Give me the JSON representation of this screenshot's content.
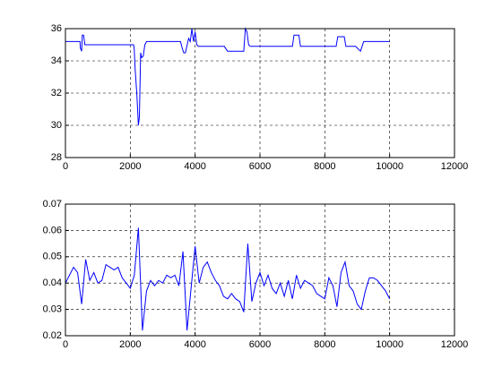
{
  "chart_data": [
    {
      "type": "line",
      "x": [
        0,
        450,
        460,
        500,
        520,
        560,
        600,
        620,
        2100,
        2120,
        2150,
        2200,
        2250,
        2280,
        2320,
        2350,
        2400,
        2450,
        2500,
        3550,
        3600,
        3650,
        3700,
        3800,
        3850,
        3900,
        3950,
        4000,
        4050,
        4100,
        4900,
        5000,
        5500,
        5550,
        5600,
        5650,
        5700,
        7000,
        7050,
        7200,
        7250,
        8350,
        8400,
        8600,
        8650,
        8950,
        9100,
        9200,
        10000
      ],
      "series": [
        {
          "color": "#0000ff",
          "values": [
            35.2,
            35.2,
            34.8,
            34.6,
            35.6,
            35.6,
            35.0,
            35.0,
            35.0,
            34.8,
            33.5,
            32.0,
            30.0,
            30.5,
            34.5,
            34.2,
            34.3,
            35.0,
            35.2,
            35.2,
            34.8,
            34.5,
            34.5,
            35.4,
            35.2,
            36.0,
            35.2,
            35.8,
            35.0,
            34.9,
            34.9,
            34.6,
            34.6,
            36.0,
            35.8,
            35.0,
            34.9,
            34.9,
            35.6,
            35.6,
            34.9,
            34.9,
            35.5,
            35.5,
            34.9,
            34.9,
            34.6,
            35.2,
            35.2
          ]
        }
      ],
      "xlim": [
        0,
        12000
      ],
      "xticks": [
        0,
        2000,
        4000,
        6000,
        8000,
        10000,
        12000
      ],
      "ylim": [
        28,
        36
      ],
      "yticks": [
        28,
        30,
        32,
        34,
        36
      ],
      "grid": true
    },
    {
      "type": "line",
      "x": [
        0,
        125,
        250,
        375,
        500,
        625,
        750,
        875,
        1000,
        1125,
        1250,
        1375,
        1500,
        1625,
        1750,
        1875,
        2000,
        2125,
        2250,
        2375,
        2500,
        2625,
        2750,
        2875,
        3000,
        3125,
        3250,
        3375,
        3500,
        3625,
        3750,
        3875,
        4000,
        4125,
        4250,
        4375,
        4500,
        4625,
        4750,
        4875,
        5000,
        5125,
        5250,
        5375,
        5500,
        5625,
        5750,
        5875,
        6000,
        6125,
        6250,
        6375,
        6500,
        6625,
        6750,
        6875,
        7000,
        7125,
        7250,
        7375,
        7500,
        7625,
        7750,
        7875,
        8000,
        8125,
        8250,
        8375,
        8500,
        8625,
        8750,
        8875,
        9000,
        9125,
        9250,
        9375,
        9500,
        9625,
        9750,
        9875,
        10000
      ],
      "series": [
        {
          "color": "#0000ff",
          "values": [
            0.04,
            0.043,
            0.046,
            0.044,
            0.032,
            0.049,
            0.041,
            0.044,
            0.04,
            0.041,
            0.047,
            0.046,
            0.045,
            0.046,
            0.042,
            0.04,
            0.038,
            0.043,
            0.061,
            0.022,
            0.037,
            0.041,
            0.039,
            0.041,
            0.04,
            0.043,
            0.042,
            0.043,
            0.039,
            0.052,
            0.022,
            0.038,
            0.054,
            0.04,
            0.046,
            0.048,
            0.044,
            0.041,
            0.039,
            0.035,
            0.034,
            0.036,
            0.034,
            0.033,
            0.029,
            0.055,
            0.033,
            0.04,
            0.044,
            0.039,
            0.043,
            0.038,
            0.036,
            0.04,
            0.035,
            0.041,
            0.034,
            0.043,
            0.038,
            0.041,
            0.04,
            0.039,
            0.036,
            0.035,
            0.034,
            0.042,
            0.039,
            0.031,
            0.044,
            0.048,
            0.039,
            0.037,
            0.032,
            0.03,
            0.037,
            0.042,
            0.042,
            0.041,
            0.039,
            0.037,
            0.034
          ]
        }
      ],
      "xlim": [
        0,
        12000
      ],
      "xticks": [
        0,
        2000,
        4000,
        6000,
        8000,
        10000,
        12000
      ],
      "ylim": [
        0.02,
        0.07
      ],
      "yticks": [
        0.02,
        0.03,
        0.04,
        0.05,
        0.06,
        0.07
      ],
      "grid": true
    }
  ]
}
